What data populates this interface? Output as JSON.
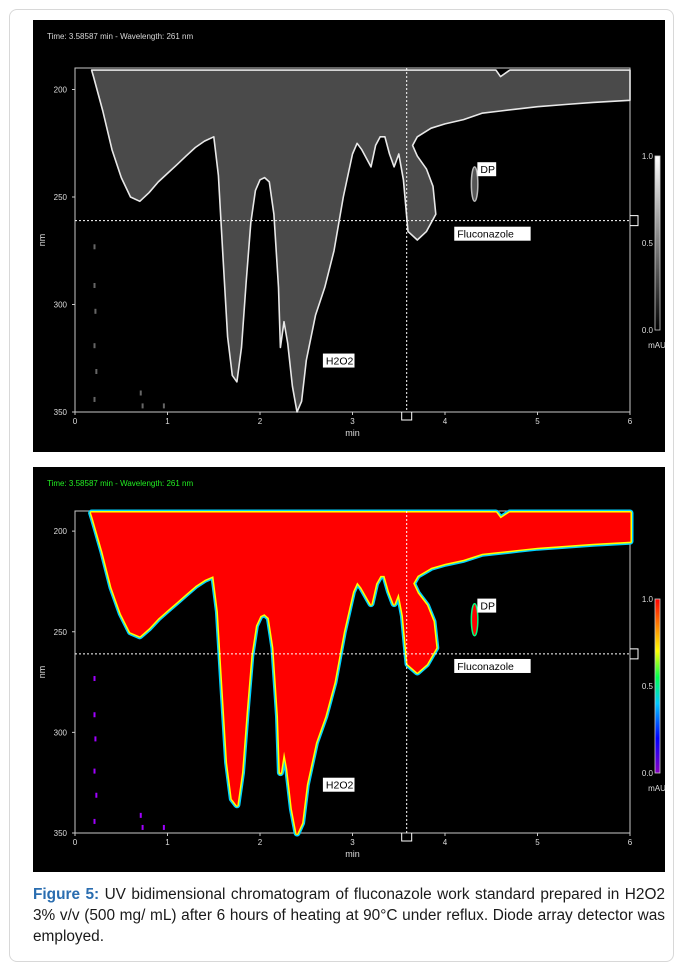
{
  "chart_data": [
    {
      "type": "heatmap",
      "colormap": "grayscale",
      "header": "Time:  3.58587 min -  Wavelength:  261 nm",
      "header_color": "#d8d8d8",
      "xlabel": "min",
      "ylabel": "nm",
      "xlim": [
        0,
        6
      ],
      "ylim": [
        350,
        190
      ],
      "xticks": [
        "0",
        "1",
        "2",
        "3",
        "4",
        "5",
        "6"
      ],
      "yticks": [
        "200",
        "250",
        "300",
        "350"
      ],
      "cursor": {
        "time_min": 3.58587,
        "wavelength_nm": 261
      },
      "colorbar": {
        "max": "1.0",
        "mid": "0.5",
        "min": "0.0",
        "unit": "mAU"
      },
      "annotations": [
        {
          "text": "DP",
          "x": 4.35,
          "y": 238
        },
        {
          "text": "Fluconazole",
          "x": 4.1,
          "y": 268
        },
        {
          "text": "H2O2",
          "x": 2.68,
          "y": 327
        }
      ]
    },
    {
      "type": "heatmap",
      "colormap": "rainbow",
      "header": "Time:  3.58587 min -  Wavelength:  261 nm",
      "header_color": "#22ee22",
      "xlabel": "min",
      "ylabel": "nm",
      "xlim": [
        0,
        6
      ],
      "ylim": [
        350,
        190
      ],
      "xticks": [
        "0",
        "1",
        "2",
        "3",
        "4",
        "5",
        "6"
      ],
      "yticks": [
        "200",
        "250",
        "300",
        "350"
      ],
      "cursor": {
        "time_min": 3.58587,
        "wavelength_nm": 261
      },
      "colorbar": {
        "max": "1.0",
        "mid": "0.5",
        "min": "0.0",
        "unit": "mAU"
      },
      "annotations": [
        {
          "text": "DP",
          "x": 4.35,
          "y": 238
        },
        {
          "text": "Fluconazole",
          "x": 4.1,
          "y": 268
        },
        {
          "text": "H2O2",
          "x": 2.68,
          "y": 327
        }
      ]
    }
  ],
  "caption": {
    "label": "Figure 5:",
    "text": " UV bidimensional chromatogram of fluconazole work standard prepared in H2O2 3% v/v (500 mg/ mL) after 6 hours of heating at 90°C under reflux. Diode array detector was employed."
  }
}
